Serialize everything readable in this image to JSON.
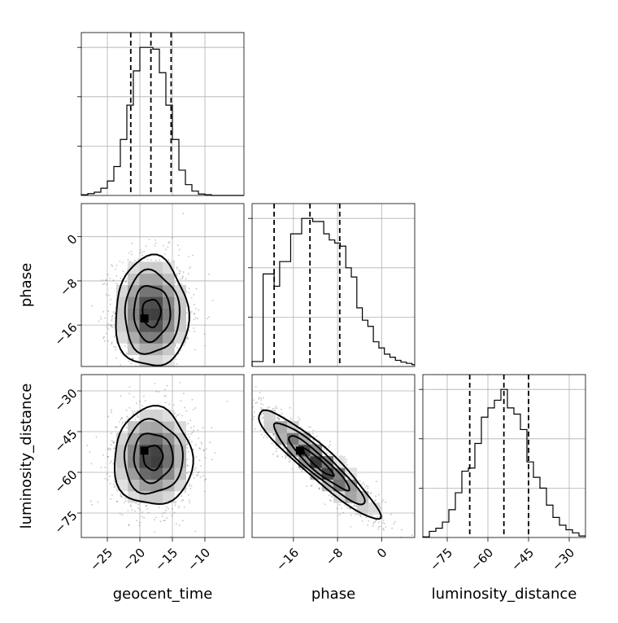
{
  "chart_data": {
    "type": "corner",
    "parameters": [
      "geocent_time",
      "phase",
      "luminosity_distance"
    ],
    "axis_labels": {
      "bottom": [
        "geocent_time",
        "phase",
        "luminosity_distance"
      ],
      "left": [
        "phase",
        "luminosity_distance"
      ]
    },
    "ranges": {
      "geocent_time": [
        -29,
        -4
      ],
      "phase": [
        -23.5,
        6
      ],
      "luminosity_distance": [
        -84,
        -24
      ]
    },
    "ticks": {
      "geocent_time": [
        -25,
        -20,
        -15,
        -10
      ],
      "phase": [
        -16,
        -8,
        0
      ],
      "luminosity_distance": [
        -75,
        -60,
        -45,
        -30
      ]
    },
    "phase_row_ticks": [
      -16,
      -8,
      0
    ],
    "distance_row_ticks": [
      -75,
      -60,
      -45,
      -30
    ],
    "grid": true,
    "histograms": {
      "geocent_time": {
        "bin_edges": [
          -29,
          -28,
          -27,
          -26,
          -25,
          -24,
          -23,
          -22,
          -21,
          -20,
          -19,
          -18,
          -17,
          -16,
          -15,
          -14,
          -13,
          -12,
          -11,
          -10,
          -9,
          -8,
          -7,
          -6,
          -5,
          -4
        ],
        "counts": [
          2,
          5,
          9,
          20,
          40,
          80,
          155,
          250,
          345,
          410,
          410,
          405,
          340,
          250,
          155,
          70,
          30,
          12,
          4,
          2,
          0,
          0,
          0,
          0,
          0
        ],
        "quantiles": [
          -21.4,
          -18.3,
          -15.2
        ]
      },
      "phase": {
        "bin_edges": [
          -23.5,
          -22.5,
          -21.5,
          -20.5,
          -19.5,
          -18.5,
          -17.5,
          -16.5,
          -15.5,
          -14.5,
          -13.5,
          -12.5,
          -11.5,
          -10.5,
          -9.5,
          -8.5,
          -7.5,
          -6.5,
          -5.5,
          -4.5,
          -3.5,
          -2.5,
          -1.5,
          -0.5,
          0.5,
          1.5,
          2.5,
          3.5,
          4.5,
          5.5,
          6
        ],
        "counts": [
          8,
          8,
          150,
          150,
          130,
          170,
          170,
          215,
          215,
          240,
          240,
          235,
          235,
          215,
          205,
          200,
          195,
          160,
          145,
          95,
          75,
          65,
          40,
          30,
          20,
          15,
          10,
          7,
          5,
          3
        ],
        "quantiles": [
          -19.5,
          -13.0,
          -7.6
        ]
      },
      "luminosity_distance": {
        "bin_edges": [
          -84,
          -81.6,
          -79.2,
          -76.8,
          -74.4,
          -72,
          -69.6,
          -67.2,
          -64.8,
          -62.4,
          -60,
          -57.6,
          -55.2,
          -52.8,
          -50.4,
          -48,
          -45.6,
          -43.2,
          -40.8,
          -38.4,
          -36,
          -33.6,
          -31.2,
          -28.8,
          -26.4,
          -24
        ],
        "counts": [
          2,
          20,
          30,
          50,
          90,
          145,
          215,
          225,
          305,
          390,
          420,
          445,
          480,
          420,
          400,
          350,
          245,
          195,
          160,
          105,
          65,
          40,
          25,
          15,
          5
        ],
        "quantiles": [
          -66.7,
          -54.1,
          -45.0
        ]
      }
    },
    "joint_density": [
      {
        "x": "geocent_time",
        "y": "phase",
        "center": [
          -18.2,
          -13.8
        ],
        "sigma": [
          2.8,
          5.0
        ],
        "correlation": 0.0,
        "peak": [
          -19.3,
          -14.8
        ],
        "contour_sigmas": [
          0.5,
          1.0,
          1.5,
          2.0
        ]
      },
      {
        "x": "geocent_time",
        "y": "luminosity_distance",
        "center": [
          -18.0,
          -54.5
        ],
        "sigma": [
          3.0,
          9.0
        ],
        "correlation": 0.0,
        "peak": [
          -19.3,
          -52.0
        ],
        "contour_sigmas": [
          0.5,
          1.0,
          1.5,
          2.0
        ]
      },
      {
        "x": "phase",
        "y": "luminosity_distance",
        "center": [
          -11.5,
          -56.5
        ],
        "sigma": [
          5.5,
          10.0
        ],
        "correlation": -0.93,
        "peak": [
          -14.8,
          -52.0
        ],
        "contour_sigmas": [
          0.5,
          1.0,
          1.5,
          2.0
        ]
      }
    ]
  }
}
